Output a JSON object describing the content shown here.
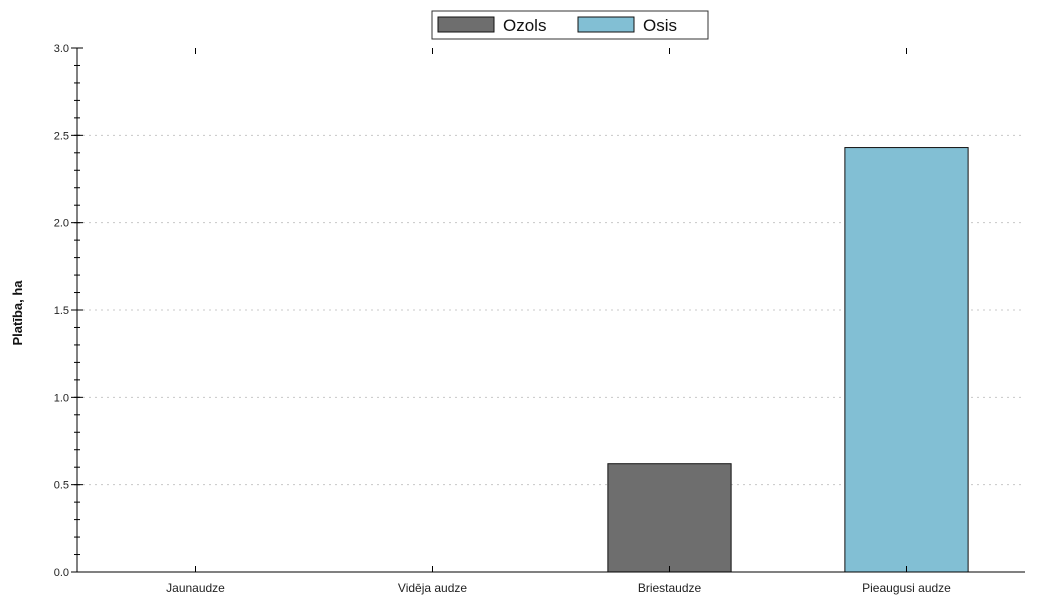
{
  "chart_data": {
    "type": "bar",
    "categories": [
      "Jaunaudze",
      "Vidēja audze",
      "Briestaudze",
      "Pieaugusi audze"
    ],
    "series": [
      {
        "name": "Ozols",
        "values": [
          0,
          0,
          0.62,
          0
        ]
      },
      {
        "name": "Osis",
        "values": [
          0,
          0,
          0,
          2.43
        ]
      }
    ],
    "title": "",
    "xlabel": "",
    "ylabel": "Platība, ha",
    "ylim": [
      0,
      3.0
    ],
    "yticks": [
      "0.0",
      "0.5",
      "1.0",
      "1.5",
      "2.0",
      "2.5",
      "3.0"
    ],
    "grid": "horizontal dotted",
    "legend_position": "top-center",
    "colors": {
      "Ozols": "#6e6e6e",
      "Osis": "#82bfd4",
      "bar_edge": "#111111",
      "grid": "#c8c8c8",
      "axis": "#000000"
    }
  }
}
